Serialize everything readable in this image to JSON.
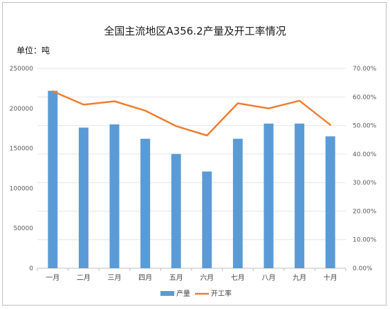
{
  "chart_data": {
    "type": "bar",
    "title": "全国主流地区A356.2产量及开工率情况",
    "unit_label": "单位：吨",
    "categories": [
      "一月",
      "二月",
      "三月",
      "四月",
      "五月",
      "六月",
      "七月",
      "八月",
      "九月",
      "十月"
    ],
    "series": [
      {
        "name": "产量",
        "type": "bar",
        "axis": "left",
        "color": "#5b9bd5",
        "values": [
          222000,
          176000,
          180000,
          162000,
          143000,
          121000,
          162000,
          181000,
          181000,
          165000
        ]
      },
      {
        "name": "开工率",
        "type": "line",
        "axis": "right",
        "color": "#ed7d31",
        "values": [
          0.62,
          0.573,
          0.585,
          0.552,
          0.498,
          0.465,
          0.578,
          0.56,
          0.587,
          0.502
        ]
      }
    ],
    "y_left": {
      "ylim": [
        0,
        250000
      ],
      "ticks": [
        "0",
        "50000",
        "100000",
        "150000",
        "200000",
        "250000"
      ]
    },
    "y_right": {
      "ylim": [
        0,
        0.7
      ],
      "ticks": [
        "0.00%",
        "10.00%",
        "20.00%",
        "30.00%",
        "40.00%",
        "50.00%",
        "60.00%",
        "70.00%"
      ]
    },
    "grid": true,
    "legend_position": "bottom"
  }
}
